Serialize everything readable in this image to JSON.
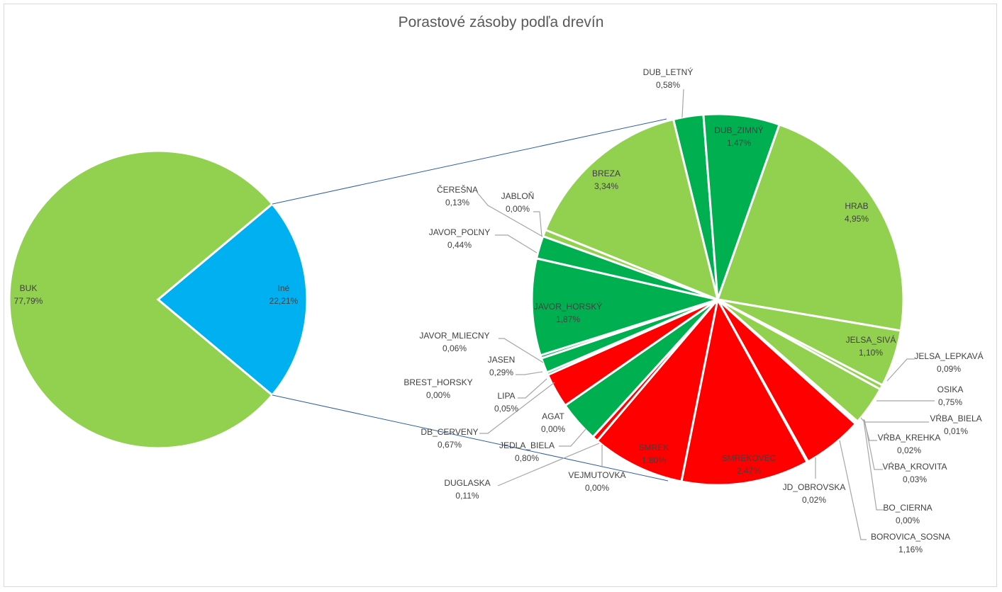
{
  "chart_data": {
    "type": "pie-of-pie",
    "title": "Porastové zásoby podľa drevín",
    "primary": [
      {
        "name": "BUK",
        "pct": "77,79%",
        "value": 77.79,
        "color": "#92d050"
      },
      {
        "name": "Iné",
        "pct": "22,21%",
        "value": 22.21,
        "color": "#00b0f0"
      }
    ],
    "secondary": [
      {
        "name": "DUB_LETNÝ",
        "pct": "0,58%",
        "value": 0.58,
        "color": "#00b050"
      },
      {
        "name": "DUB_ZIMNÝ",
        "pct": "1,47%",
        "value": 1.47,
        "color": "#00b050"
      },
      {
        "name": "HRAB",
        "pct": "4,95%",
        "value": 4.95,
        "color": "#92d050"
      },
      {
        "name": "JELSA_SIVÁ",
        "pct": "1,10%",
        "value": 1.1,
        "color": "#92d050"
      },
      {
        "name": "JELSA_LEPKAVÁ",
        "pct": "0,09%",
        "value": 0.09,
        "color": "#92d050"
      },
      {
        "name": "OSIKA",
        "pct": "0,75%",
        "value": 0.75,
        "color": "#92d050"
      },
      {
        "name": "VŔBA_BIELA",
        "pct": "0,01%",
        "value": 0.01,
        "color": "#92d050"
      },
      {
        "name": "VŔBA_KREHKA",
        "pct": "0,02%",
        "value": 0.02,
        "color": "#92d050"
      },
      {
        "name": "VŔBA_KROVITA",
        "pct": "0,03%",
        "value": 0.03,
        "color": "#92d050"
      },
      {
        "name": "BO_CIERNA",
        "pct": "0,00%",
        "value": 0.0,
        "color": "#ff0000"
      },
      {
        "name": "BOROVICA_SOSNA",
        "pct": "1,16%",
        "value": 1.16,
        "color": "#ff0000"
      },
      {
        "name": "JD_OBROVSKA",
        "pct": "0,02%",
        "value": 0.02,
        "color": "#ff0000"
      },
      {
        "name": "SMREKOVEC",
        "pct": "2,47%",
        "value": 2.47,
        "color": "#ff0000"
      },
      {
        "name": "SMREK",
        "pct": "1,80%",
        "value": 1.8,
        "color": "#ff0000"
      },
      {
        "name": "VEJMUTOVKA",
        "pct": "0,00%",
        "value": 0.0,
        "color": "#ff0000"
      },
      {
        "name": "DUGLASKA",
        "pct": "0,11%",
        "value": 0.11,
        "color": "#ff0000"
      },
      {
        "name": "JEDLA_BIELA",
        "pct": "0,80%",
        "value": 0.8,
        "color": "#00b050"
      },
      {
        "name": "AGAT",
        "pct": "0,00%",
        "value": 0.0,
        "color": "#00b050"
      },
      {
        "name": "DB_CERVENY",
        "pct": "0,67%",
        "value": 0.67,
        "color": "#ff0000"
      },
      {
        "name": "LIPA",
        "pct": "0,05%",
        "value": 0.05,
        "color": "#00b050"
      },
      {
        "name": "BREST_HORSKY",
        "pct": "0,00%",
        "value": 0.0,
        "color": "#00b050"
      },
      {
        "name": "JASEN",
        "pct": "0,29%",
        "value": 0.29,
        "color": "#00b050"
      },
      {
        "name": "JAVOR_MLIECNY",
        "pct": "0,06%",
        "value": 0.06,
        "color": "#00b050"
      },
      {
        "name": "JAVOR_HORSKÝ",
        "pct": "1,87%",
        "value": 1.87,
        "color": "#00b050"
      },
      {
        "name": "JAVOR_POĽNY",
        "pct": "0,44%",
        "value": 0.44,
        "color": "#00b050"
      },
      {
        "name": "JABLOŇ",
        "pct": "0,00%",
        "value": 0.0,
        "color": "#92d050"
      },
      {
        "name": "ČEREŠNA",
        "pct": "0,13%",
        "value": 0.13,
        "color": "#92d050"
      },
      {
        "name": "BREZA",
        "pct": "3,34%",
        "value": 3.34,
        "color": "#92d050"
      }
    ]
  }
}
